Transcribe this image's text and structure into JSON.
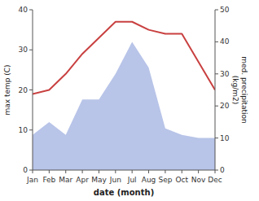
{
  "chart_data": {
    "type": "line",
    "categories": [
      "Jan",
      "Feb",
      "Mar",
      "Apr",
      "May",
      "Jun",
      "Jul",
      "Aug",
      "Sep",
      "Oct",
      "Nov",
      "Dec"
    ],
    "xlabel": "date (month)",
    "ylabel": "max temp (C)",
    "y2label": "med. precipitation\n(kg/m2)",
    "series": [
      {
        "type": "line",
        "color": "#c94040",
        "values": [
          19,
          20,
          24,
          29,
          33,
          37,
          37,
          35,
          34,
          34,
          27,
          20
        ]
      },
      {
        "type": "area",
        "color": "#b8c4e8",
        "axis": "y2",
        "values": [
          11,
          15,
          11,
          22,
          22,
          30,
          40,
          32,
          13,
          11,
          10,
          10
        ]
      }
    ],
    "ylim": [
      0,
      40
    ],
    "yticks": [
      0,
      10,
      20,
      30,
      40
    ],
    "y2lim": [
      0,
      50
    ],
    "y2ticks": [
      0,
      10,
      20,
      30,
      40,
      50
    ],
    "grid": false
  }
}
